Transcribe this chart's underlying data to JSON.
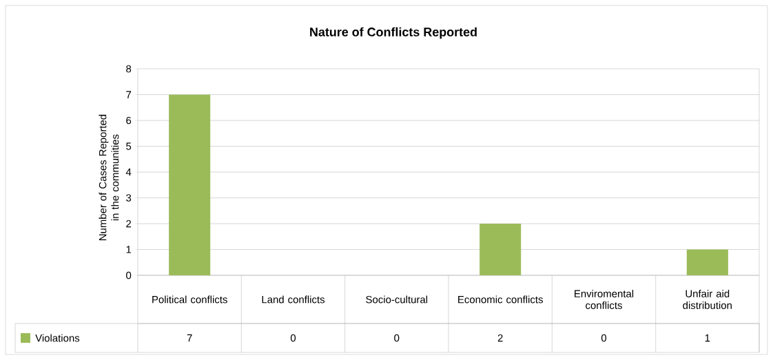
{
  "chart_data": {
    "type": "bar",
    "title": "Nature of Conflicts Reported",
    "ylabel": "Number of Cases Reported in the communities",
    "categories": [
      "Political conflicts",
      "Land conflicts",
      "Socio-cultural",
      "Economic conflicts",
      "Enviromental conflicts",
      "Unfair aid distribution"
    ],
    "series": [
      {
        "name": "Violations",
        "color": "#9bbb59",
        "values": [
          7,
          0,
          0,
          2,
          0,
          1
        ]
      }
    ],
    "ylim": [
      0,
      8
    ],
    "yticks": [
      0,
      1,
      2,
      3,
      4,
      5,
      6,
      7,
      8
    ],
    "grid": "y",
    "legend": "bottom",
    "data_labels": true
  }
}
